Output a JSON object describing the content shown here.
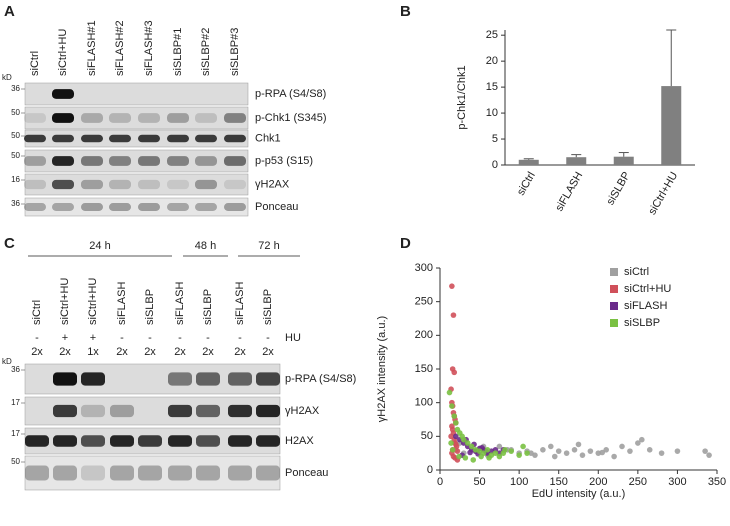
{
  "panel_a": {
    "label": "A",
    "kd": "kD",
    "lanes": [
      "siCtrl",
      "siCtrl+HU",
      "siFLASH#1",
      "siFLASH#2",
      "siFLASH#3",
      "siSLBP#1",
      "siSLBP#2",
      "siSLBP#3"
    ],
    "rows": [
      {
        "label": "p-RPA (S4/S8)",
        "marker": 36
      },
      {
        "label": "p-Chk1 (S345)",
        "marker": 50
      },
      {
        "label": "Chk1",
        "marker": 50
      },
      {
        "label": "p-p53 (S15)",
        "marker": 50
      },
      {
        "label": "γH2AX",
        "marker": 16
      },
      {
        "label": "Ponceau",
        "marker": 36
      }
    ]
  },
  "panel_c": {
    "label": "C",
    "kd": "kD",
    "time_groups": [
      "24 h",
      "48 h",
      "72 h"
    ],
    "lanes": [
      "siCtrl",
      "siCtrl+HU",
      "siCtrl+HU",
      "siFLASH",
      "siSLBP",
      "siFLASH",
      "siSLBP",
      "siFLASH",
      "siSLBP"
    ],
    "hu_label": "HU",
    "hu": [
      "-",
      "+",
      "+",
      "-",
      "-",
      "-",
      "-",
      "-",
      "-"
    ],
    "dose": [
      "2x",
      "2x",
      "1x",
      "2x",
      "2x",
      "2x",
      "2x",
      "2x",
      "2x"
    ],
    "rows": [
      {
        "label": "p-RPA (S4/S8)",
        "marker": 36
      },
      {
        "label": "γH2AX",
        "marker": 17
      },
      {
        "label": "H2AX",
        "marker": 17
      },
      {
        "label": "Ponceau",
        "marker": 50
      }
    ]
  },
  "chart_data": [
    {
      "type": "bar",
      "label": "B",
      "ylabel": "p-Chk1/Chk1",
      "categories": [
        "siCtrl",
        "siFLASH",
        "siSLBP",
        "siCtrl+HU"
      ],
      "values": [
        1.0,
        1.5,
        1.6,
        15.2
      ],
      "errors": [
        0.2,
        0.5,
        0.8,
        10.8
      ],
      "color": "#808080",
      "ylim": [
        0,
        26
      ],
      "yticks": [
        0,
        5,
        10,
        15,
        20,
        25
      ],
      "grid": false
    },
    {
      "type": "scatter",
      "label": "D",
      "xlabel": "EdU intensity (a.u.)",
      "ylabel": "γH2AX intensity (a.u.)",
      "xlim": [
        0,
        350
      ],
      "xticks": [
        0,
        50,
        100,
        150,
        200,
        250,
        300,
        350
      ],
      "ylim": [
        0,
        300
      ],
      "yticks": [
        0,
        50,
        100,
        150,
        200,
        250,
        300
      ],
      "legend": "upper right",
      "grid": false,
      "series": [
        {
          "name": "siCtrl",
          "color": "#a0a0a0",
          "x": [
            20,
            30,
            45,
            60,
            75,
            90,
            100,
            110,
            120,
            130,
            140,
            150,
            160,
            170,
            180,
            190,
            200,
            210,
            220,
            230,
            240,
            250,
            255,
            265,
            280,
            300,
            335,
            340,
            25,
            55,
            85,
            115,
            145,
            175,
            205
          ],
          "values": [
            30,
            25,
            28,
            22,
            35,
            30,
            25,
            28,
            22,
            30,
            35,
            28,
            25,
            30,
            22,
            28,
            25,
            30,
            20,
            35,
            28,
            40,
            45,
            30,
            25,
            28,
            28,
            22,
            40,
            35,
            30,
            25,
            20,
            38,
            26
          ]
        },
        {
          "name": "siCtrl+HU",
          "color": "#d0505a",
          "x": [
            15,
            16,
            17,
            18,
            14,
            15,
            16,
            17,
            18,
            19,
            20,
            15,
            16,
            17,
            14,
            18,
            19,
            20,
            21,
            16,
            22,
            15,
            17,
            19,
            22
          ],
          "values": [
            273,
            150,
            230,
            145,
            120,
            100,
            95,
            85,
            80,
            75,
            70,
            65,
            60,
            55,
            50,
            45,
            40,
            38,
            35,
            30,
            28,
            25,
            20,
            18,
            15
          ]
        },
        {
          "name": "siFLASH",
          "color": "#6a2a8a",
          "x": [
            20,
            25,
            30,
            35,
            40,
            45,
            50,
            55,
            60,
            65,
            70,
            75,
            80,
            28,
            38,
            48,
            58,
            33,
            43,
            53
          ],
          "values": [
            50,
            45,
            40,
            35,
            30,
            28,
            32,
            30,
            25,
            28,
            30,
            25,
            30,
            22,
            26,
            24,
            28,
            45,
            38,
            33
          ]
        },
        {
          "name": "siSLBP",
          "color": "#7ac143",
          "x": [
            12,
            15,
            18,
            20,
            22,
            25,
            28,
            30,
            35,
            40,
            45,
            50,
            55,
            60,
            65,
            70,
            75,
            80,
            90,
            100,
            110,
            14,
            16,
            24,
            32,
            42,
            52,
            62,
            82,
            105
          ],
          "values": [
            115,
            95,
            80,
            70,
            60,
            55,
            50,
            45,
            40,
            35,
            30,
            28,
            25,
            30,
            22,
            25,
            20,
            25,
            28,
            22,
            25,
            40,
            30,
            20,
            18,
            15,
            20,
            18,
            30,
            35
          ]
        }
      ]
    }
  ]
}
